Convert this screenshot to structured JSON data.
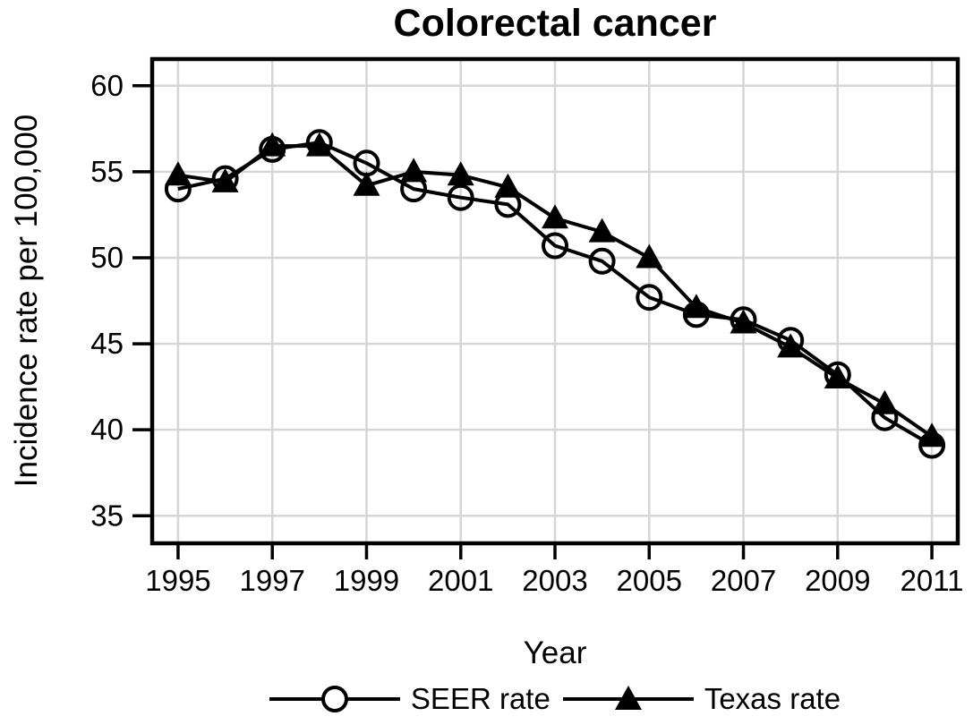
{
  "page": {
    "background_color": "#ffffff",
    "foreground_color": "#000000"
  },
  "chart_data": {
    "type": "line",
    "title": "Colorectal cancer",
    "xlabel": "Year",
    "ylabel": "Incidence rate per 100,000",
    "x": [
      1995,
      1996,
      1997,
      1998,
      1999,
      2000,
      2001,
      2002,
      2003,
      2004,
      2005,
      2006,
      2007,
      2008,
      2009,
      2010,
      2011
    ],
    "series": [
      {
        "name": "SEER rate",
        "marker": "open-circle",
        "color": "#000000",
        "values": [
          54.0,
          54.6,
          56.3,
          56.7,
          55.5,
          54.0,
          53.5,
          53.1,
          50.7,
          49.8,
          47.7,
          46.7,
          46.4,
          45.2,
          43.2,
          40.7,
          39.1
        ]
      },
      {
        "name": "Texas rate",
        "marker": "filled-triangle",
        "color": "#000000",
        "values": [
          54.8,
          54.4,
          56.5,
          56.5,
          54.2,
          55.0,
          54.8,
          54.1,
          52.3,
          51.5,
          50.0,
          47.1,
          46.2,
          44.8,
          43.0,
          41.5,
          39.6
        ]
      }
    ],
    "xticks": [
      1995,
      1997,
      1999,
      2001,
      2003,
      2005,
      2007,
      2009,
      2011
    ],
    "yticks": [
      35,
      40,
      45,
      50,
      55,
      60
    ],
    "xlim": [
      1994.45,
      2011.55
    ],
    "ylim": [
      33.4,
      61.55
    ],
    "grid": true,
    "grid_color": "#d6d6d6",
    "legend_position": "bottom"
  }
}
